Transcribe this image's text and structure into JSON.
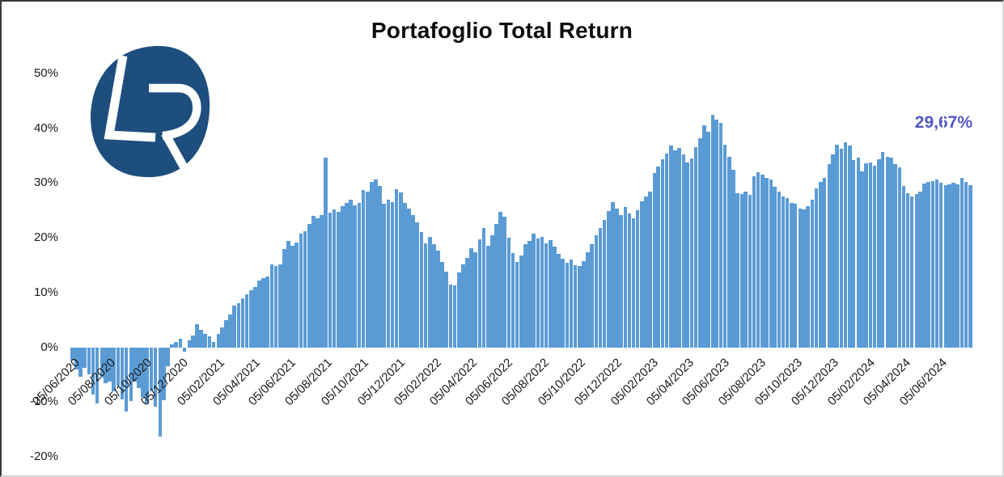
{
  "header": {
    "title": "Portafoglio Total Return"
  },
  "logo": {
    "letters": "LR",
    "shape_color": "#1D4E7E",
    "letter_color": "#FFFFFF"
  },
  "annotation": {
    "final_return_label": "29,67%",
    "color": "#5357C5"
  },
  "chart_data": {
    "type": "bar",
    "title": "Portafoglio Total Return",
    "ylabel": "",
    "xlabel": "",
    "ylim": [
      -20,
      50
    ],
    "grid": "vertical white separators over bars",
    "legend_position": "none",
    "bar_color": "#5B9BD5",
    "frequency": "weekly",
    "start_date": "05/06/2020",
    "y_tick_labels": [
      "50%",
      "40%",
      "30%",
      "20%",
      "10%",
      "0%",
      "-10%",
      "-20%"
    ],
    "y_tick_values": [
      50,
      40,
      30,
      20,
      10,
      0,
      -10,
      -20
    ],
    "x_tick_labels": [
      "05/06/2020",
      "05/08/2020",
      "05/10/2020",
      "05/12/2020",
      "05/02/2021",
      "05/04/2021",
      "05/06/2021",
      "05/08/2021",
      "05/10/2021",
      "05/12/2021",
      "05/02/2022",
      "05/04/2022",
      "05/06/2022",
      "05/08/2022",
      "05/10/2022",
      "05/12/2022",
      "05/02/2023",
      "05/04/2023",
      "05/06/2023",
      "05/08/2023",
      "05/10/2023",
      "05/12/2023",
      "05/02/2024",
      "05/04/2024",
      "05/06/2024"
    ],
    "values": [
      -2.5,
      -4.0,
      -5.4,
      -3.7,
      -5.0,
      -8.7,
      -10.3,
      -5.5,
      -6.6,
      -6.2,
      -8.0,
      -7.0,
      -9.5,
      -11.8,
      -9.8,
      -6.2,
      -7.5,
      -9.0,
      -10.2,
      -8.0,
      -10.8,
      -16.3,
      -9.7,
      -3.4,
      0.5,
      1.0,
      1.5,
      -0.8,
      1.2,
      2.2,
      4.2,
      3.2,
      2.4,
      2.0,
      1.0,
      2.5,
      3.7,
      5.0,
      6.0,
      7.6,
      8.1,
      9.0,
      9.7,
      10.4,
      11.0,
      12.2,
      12.6,
      12.9,
      15.2,
      14.8,
      15.1,
      18.0,
      19.4,
      18.6,
      19.2,
      20.8,
      21.2,
      22.6,
      24.0,
      23.6,
      24.2,
      34.6,
      24.6,
      25.2,
      24.8,
      25.8,
      26.4,
      26.9,
      25.9,
      26.3,
      28.8,
      28.4,
      30.2,
      30.6,
      29.4,
      26.2,
      27.0,
      26.5,
      28.9,
      28.3,
      26.4,
      25.4,
      24.2,
      22.8,
      21.0,
      19.0,
      20.2,
      18.8,
      17.6,
      15.6,
      13.8,
      11.5,
      11.3,
      13.6,
      15.2,
      16.4,
      18.1,
      17.4,
      19.7,
      21.8,
      18.5,
      20.5,
      22.5,
      24.7,
      23.8,
      20.0,
      17.2,
      15.6,
      16.8,
      18.8,
      19.4,
      20.7,
      19.8,
      20.2,
      19.0,
      19.6,
      18.4,
      17.1,
      16.2,
      15.4,
      16.0,
      15.0,
      14.9,
      15.8,
      17.3,
      18.9,
      20.4,
      21.8,
      23.2,
      24.9,
      26.5,
      25.4,
      24.1,
      25.6,
      24.4,
      23.5,
      25.0,
      26.6,
      27.6,
      28.4,
      31.8,
      33.0,
      34.3,
      35.4,
      36.9,
      36.0,
      36.4,
      35.2,
      33.8,
      34.5,
      36.5,
      38.2,
      40.6,
      39.4,
      42.5,
      41.6,
      41.0,
      37.0,
      34.8,
      32.5,
      28.2,
      28.0,
      28.4,
      27.8,
      31.2,
      32.0,
      31.6,
      31.0,
      30.6,
      29.3,
      28.4,
      27.6,
      27.2,
      26.4,
      26.2,
      25.4,
      25.2,
      25.8,
      27.0,
      29.0,
      30.2,
      31.0,
      33.5,
      35.2,
      37.0,
      36.2,
      37.5,
      36.8,
      34.2,
      34.7,
      32.2,
      33.6,
      33.8,
      33.2,
      34.4,
      35.7,
      34.8,
      34.6,
      33.4,
      32.8,
      29.4,
      28.2,
      27.6,
      28.0,
      28.4,
      29.9,
      30.2,
      30.4,
      30.6,
      30.0,
      29.6,
      29.8,
      30.1,
      29.8,
      31.0,
      30.2,
      29.67
    ],
    "final_value": 29.67,
    "final_value_label": "29,67%"
  }
}
